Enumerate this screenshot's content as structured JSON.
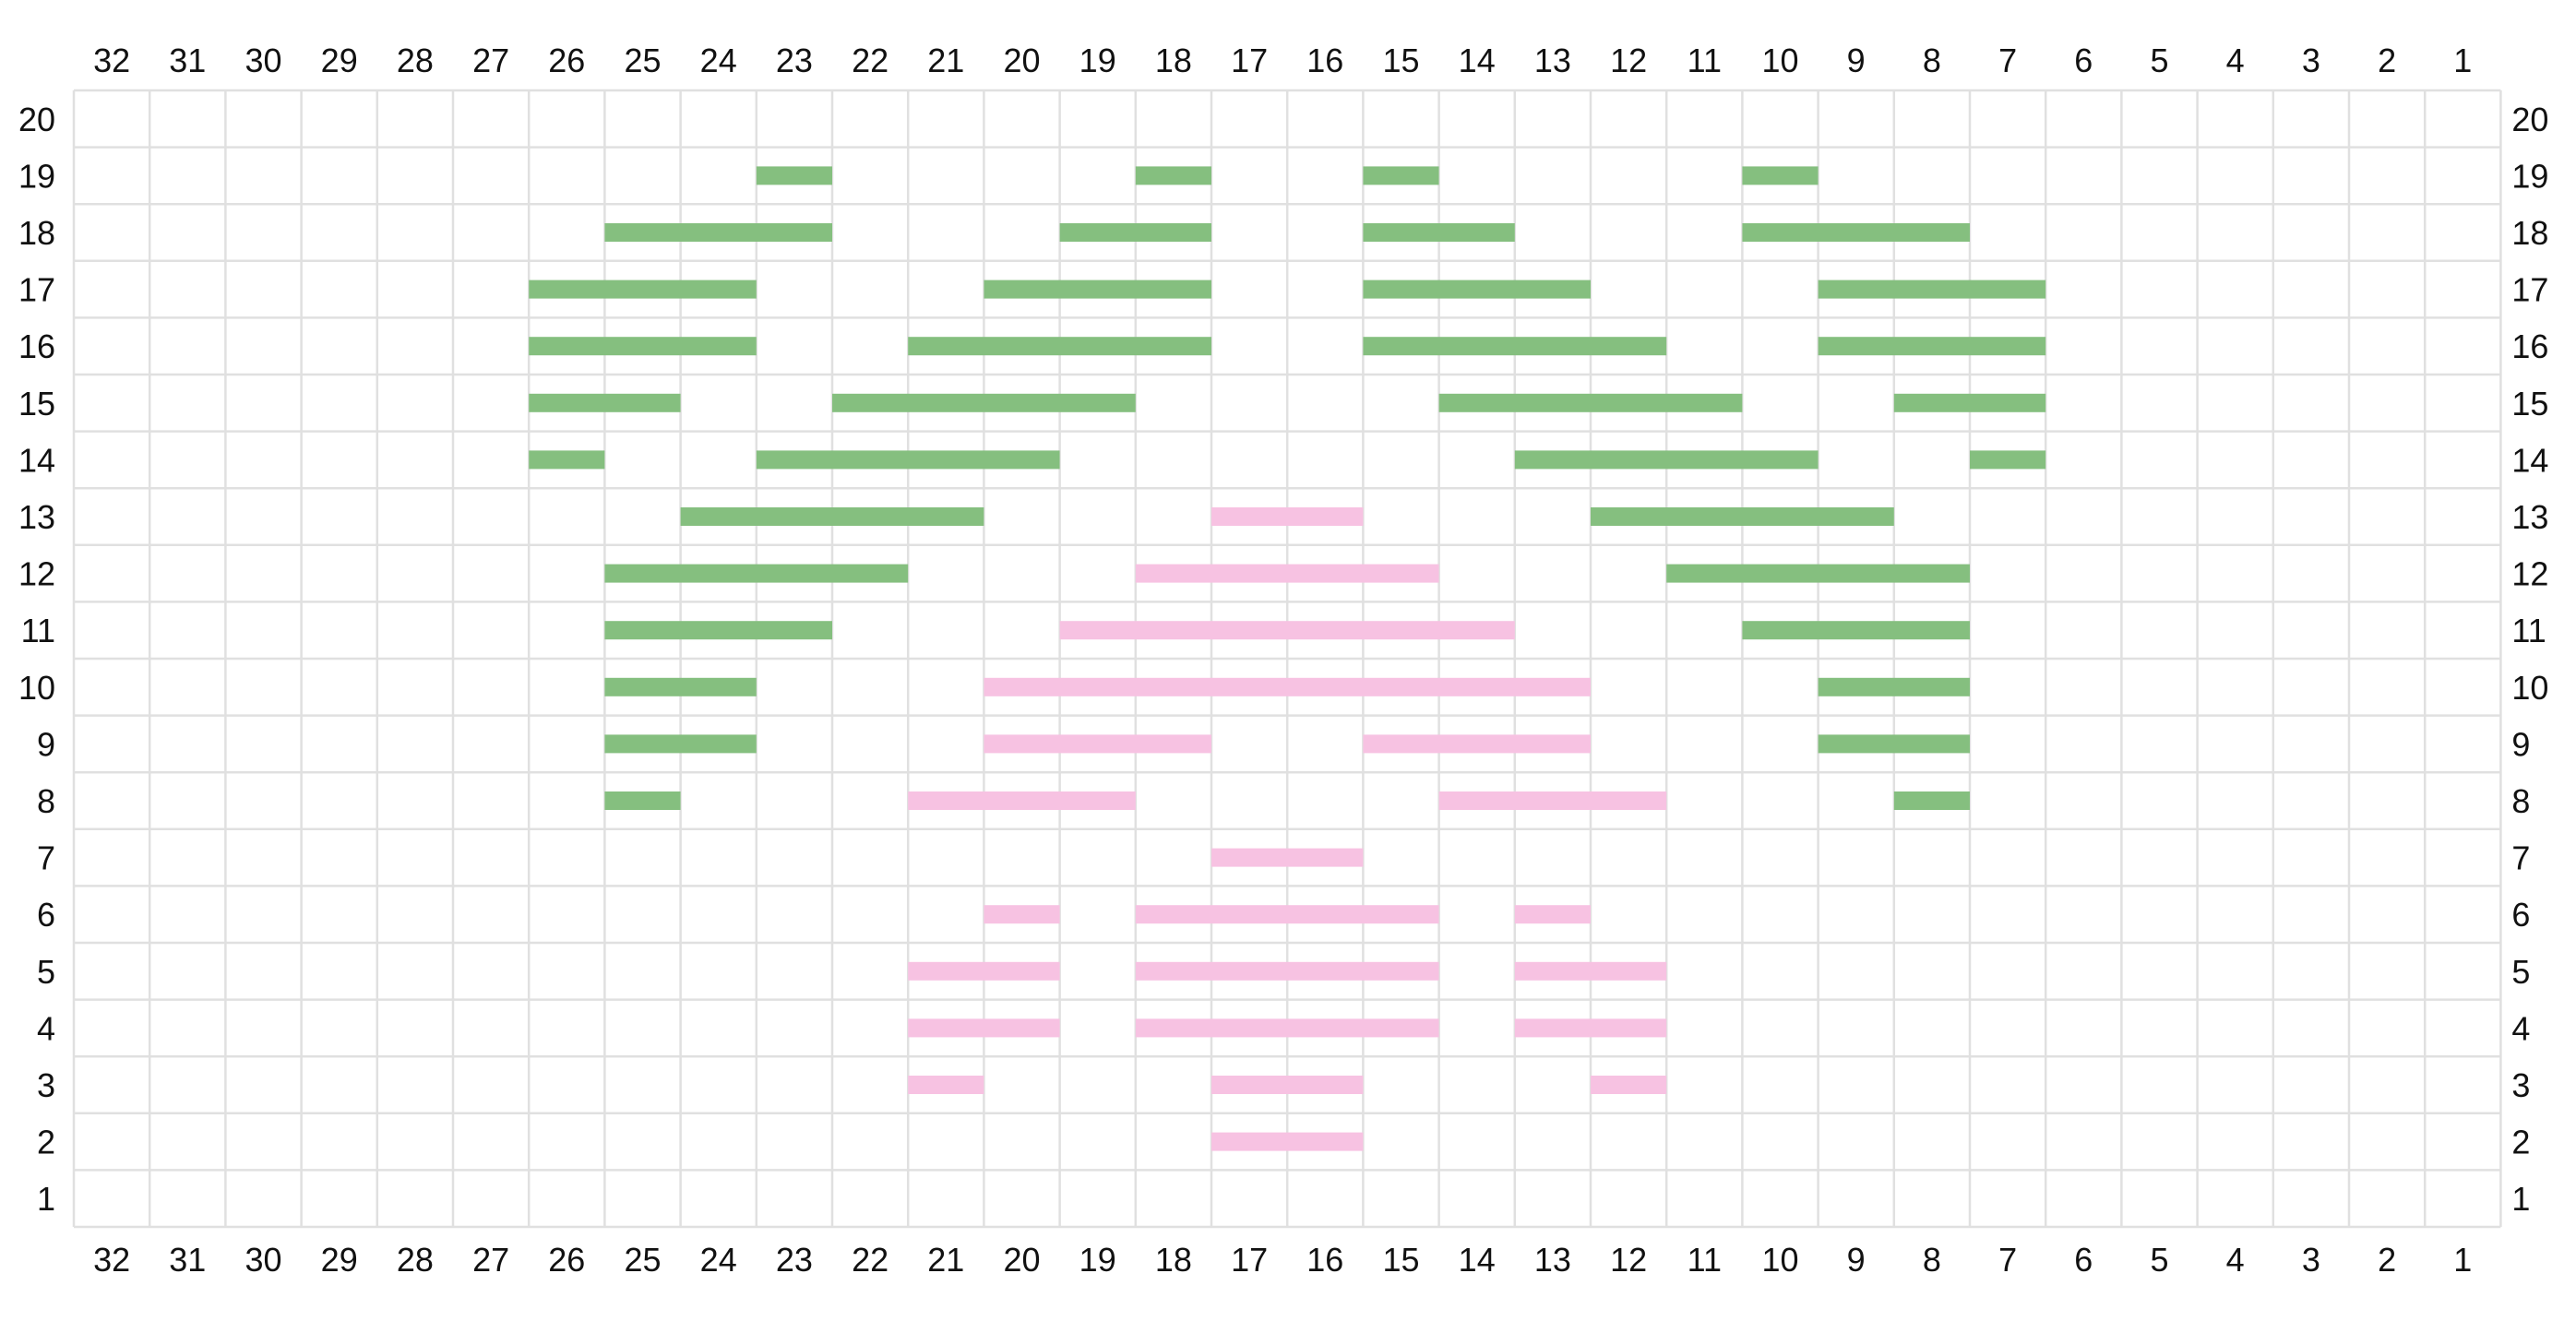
{
  "chart_data": {
    "type": "heatmap",
    "title": "",
    "xlabel": "",
    "ylabel": "",
    "columns": [
      32,
      31,
      30,
      29,
      28,
      27,
      26,
      25,
      24,
      23,
      22,
      21,
      20,
      19,
      18,
      17,
      16,
      15,
      14,
      13,
      12,
      11,
      10,
      9,
      8,
      7,
      6,
      5,
      4,
      3,
      2,
      1
    ],
    "rows": [
      20,
      19,
      18,
      17,
      16,
      15,
      14,
      13,
      12,
      11,
      10,
      9,
      8,
      7,
      6,
      5,
      4,
      3,
      2,
      1
    ],
    "grid": true,
    "colors": {
      "green": "#85bf7f",
      "pink": "#f7c2e2",
      "grid": "#e0e0e0"
    },
    "series": [
      {
        "color": "green",
        "segments": [
          {
            "row": 19,
            "from": 23,
            "to": 23
          },
          {
            "row": 19,
            "from": 18,
            "to": 18
          },
          {
            "row": 19,
            "from": 15,
            "to": 15
          },
          {
            "row": 19,
            "from": 10,
            "to": 10
          },
          {
            "row": 18,
            "from": 25,
            "to": 23
          },
          {
            "row": 18,
            "from": 19,
            "to": 18
          },
          {
            "row": 18,
            "from": 15,
            "to": 14
          },
          {
            "row": 18,
            "from": 10,
            "to": 8
          },
          {
            "row": 17,
            "from": 26,
            "to": 24
          },
          {
            "row": 17,
            "from": 20,
            "to": 18
          },
          {
            "row": 17,
            "from": 15,
            "to": 13
          },
          {
            "row": 17,
            "from": 9,
            "to": 7
          },
          {
            "row": 16,
            "from": 26,
            "to": 24
          },
          {
            "row": 16,
            "from": 21,
            "to": 18
          },
          {
            "row": 16,
            "from": 15,
            "to": 12
          },
          {
            "row": 16,
            "from": 9,
            "to": 7
          },
          {
            "row": 15,
            "from": 26,
            "to": 25
          },
          {
            "row": 15,
            "from": 22,
            "to": 19
          },
          {
            "row": 15,
            "from": 14,
            "to": 11
          },
          {
            "row": 15,
            "from": 8,
            "to": 7
          },
          {
            "row": 14,
            "from": 26,
            "to": 26
          },
          {
            "row": 14,
            "from": 23,
            "to": 20
          },
          {
            "row": 14,
            "from": 13,
            "to": 10
          },
          {
            "row": 14,
            "from": 7,
            "to": 7
          },
          {
            "row": 13,
            "from": 24,
            "to": 21
          },
          {
            "row": 13,
            "from": 12,
            "to": 9
          },
          {
            "row": 12,
            "from": 25,
            "to": 22
          },
          {
            "row": 12,
            "from": 11,
            "to": 8
          },
          {
            "row": 11,
            "from": 25,
            "to": 23
          },
          {
            "row": 11,
            "from": 10,
            "to": 8
          },
          {
            "row": 10,
            "from": 25,
            "to": 24
          },
          {
            "row": 10,
            "from": 9,
            "to": 8
          },
          {
            "row": 9,
            "from": 25,
            "to": 24
          },
          {
            "row": 9,
            "from": 9,
            "to": 8
          },
          {
            "row": 8,
            "from": 25,
            "to": 25
          },
          {
            "row": 8,
            "from": 8,
            "to": 8
          }
        ]
      },
      {
        "color": "pink",
        "segments": [
          {
            "row": 13,
            "from": 17,
            "to": 16
          },
          {
            "row": 12,
            "from": 18,
            "to": 15
          },
          {
            "row": 11,
            "from": 19,
            "to": 14
          },
          {
            "row": 10,
            "from": 20,
            "to": 13
          },
          {
            "row": 9,
            "from": 20,
            "to": 18
          },
          {
            "row": 9,
            "from": 15,
            "to": 13
          },
          {
            "row": 8,
            "from": 21,
            "to": 19
          },
          {
            "row": 8,
            "from": 14,
            "to": 12
          },
          {
            "row": 7,
            "from": 17,
            "to": 16
          },
          {
            "row": 6,
            "from": 20,
            "to": 20
          },
          {
            "row": 6,
            "from": 18,
            "to": 15
          },
          {
            "row": 6,
            "from": 13,
            "to": 13
          },
          {
            "row": 5,
            "from": 21,
            "to": 20
          },
          {
            "row": 5,
            "from": 18,
            "to": 15
          },
          {
            "row": 5,
            "from": 13,
            "to": 12
          },
          {
            "row": 4,
            "from": 21,
            "to": 20
          },
          {
            "row": 4,
            "from": 18,
            "to": 15
          },
          {
            "row": 4,
            "from": 13,
            "to": 12
          },
          {
            "row": 3,
            "from": 21,
            "to": 21
          },
          {
            "row": 3,
            "from": 17,
            "to": 16
          },
          {
            "row": 3,
            "from": 12,
            "to": 12
          },
          {
            "row": 2,
            "from": 17,
            "to": 16
          }
        ]
      }
    ]
  }
}
